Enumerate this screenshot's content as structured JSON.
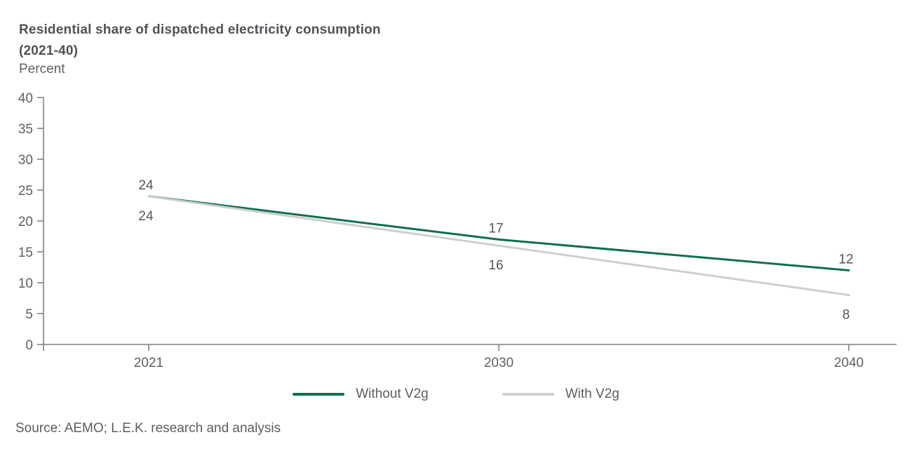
{
  "header": {
    "title_line1": "Residential share of dispatched electricity consumption",
    "title_line2": "(2021-40)",
    "unit_label": "Percent"
  },
  "chart_data": {
    "type": "line",
    "title": "Residential share of dispatched electricity consumption (2021-40)",
    "ylabel": "Percent",
    "xlabel": "",
    "categories": [
      "2021",
      "2030",
      "2040"
    ],
    "series": [
      {
        "name": "Without V2g",
        "values": [
          24,
          17,
          12
        ],
        "color": "#0f7049",
        "label_position": "above"
      },
      {
        "name": "With V2g",
        "values": [
          24,
          16,
          8
        ],
        "color": "#cbcfce",
        "label_position": "below"
      }
    ],
    "ylim": [
      0,
      40
    ],
    "yticks": [
      0,
      5,
      10,
      15,
      20,
      25,
      30,
      35,
      40
    ],
    "grid": false,
    "data_labels_shown": true,
    "legend_position": "bottom"
  },
  "footer": {
    "source": "Source: AEMO; L.E.K. research and analysis"
  },
  "style": {
    "axis_color": "#7f8285",
    "tick_label_color": "#5d6064",
    "value_label_color": "#54575b"
  }
}
